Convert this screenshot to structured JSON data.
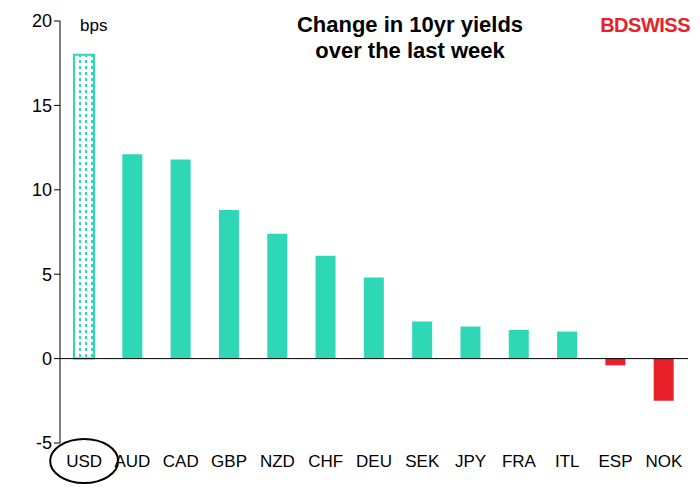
{
  "chart_data": {
    "type": "bar",
    "title": "Change in 10yr yields over the last week",
    "ylabel": "bps",
    "annotations": [
      "BDSWISS"
    ],
    "categories": [
      "USD",
      "AUD",
      "CAD",
      "GBP",
      "NZD",
      "CHF",
      "DEU",
      "SEK",
      "JPY",
      "FRA",
      "ITL",
      "ESP",
      "NOK"
    ],
    "values": [
      18,
      12.1,
      11.8,
      8.8,
      7.4,
      6.1,
      4.8,
      2.2,
      1.9,
      1.7,
      1.6,
      -0.4,
      -2.5
    ],
    "colors": [
      "#2ED8B6",
      "#2ED8B6",
      "#2ED8B6",
      "#2ED8B6",
      "#2ED8B6",
      "#2ED8B6",
      "#2ED8B6",
      "#2ED8B6",
      "#2ED8B6",
      "#2ED8B6",
      "#2ED8B6",
      "#E8202A",
      "#E8202A"
    ],
    "ylim": [
      -5,
      20
    ],
    "yticks": [
      -5,
      0,
      5,
      10,
      15,
      20
    ],
    "grid": false
  }
}
